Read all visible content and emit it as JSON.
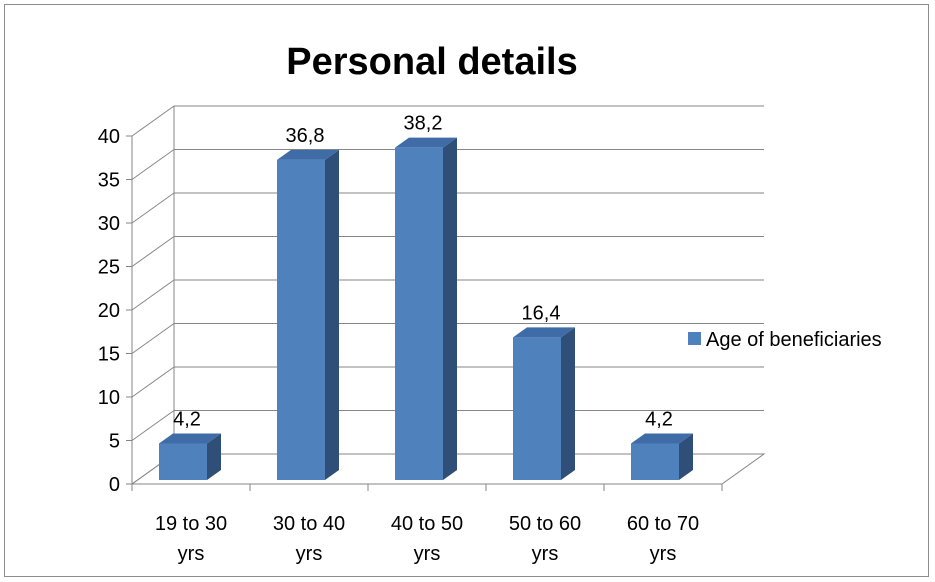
{
  "chart_data": {
    "type": "bar",
    "title": "Personal details",
    "categories": [
      "19 to 30 yrs",
      "30 to 40 yrs",
      "40 to 50 yrs",
      "50 to 60 yrs",
      "60 to 70 yrs"
    ],
    "category_lines": [
      [
        "19 to 30",
        "yrs"
      ],
      [
        "30 to 40",
        "yrs"
      ],
      [
        "40 to 50",
        "yrs"
      ],
      [
        "50 to 60",
        "yrs"
      ],
      [
        "60 to 70",
        "yrs"
      ]
    ],
    "series": [
      {
        "name": "Age of beneficiaries",
        "values": [
          4.2,
          36.8,
          38.2,
          16.4,
          4.2
        ],
        "labels": [
          "4,2",
          "36,8",
          "38,2",
          "16,4",
          "4,2"
        ]
      }
    ],
    "ylim": [
      0,
      40
    ],
    "yticks": [
      0,
      5,
      10,
      15,
      20,
      25,
      30,
      35,
      40
    ],
    "grid": true,
    "style": "3d-column",
    "legend_position": "right",
    "colors": {
      "bar_front": "#4f81bd",
      "bar_side": "#2f4f78",
      "bar_top": "#3f6ca6",
      "grid": "#868686"
    }
  }
}
